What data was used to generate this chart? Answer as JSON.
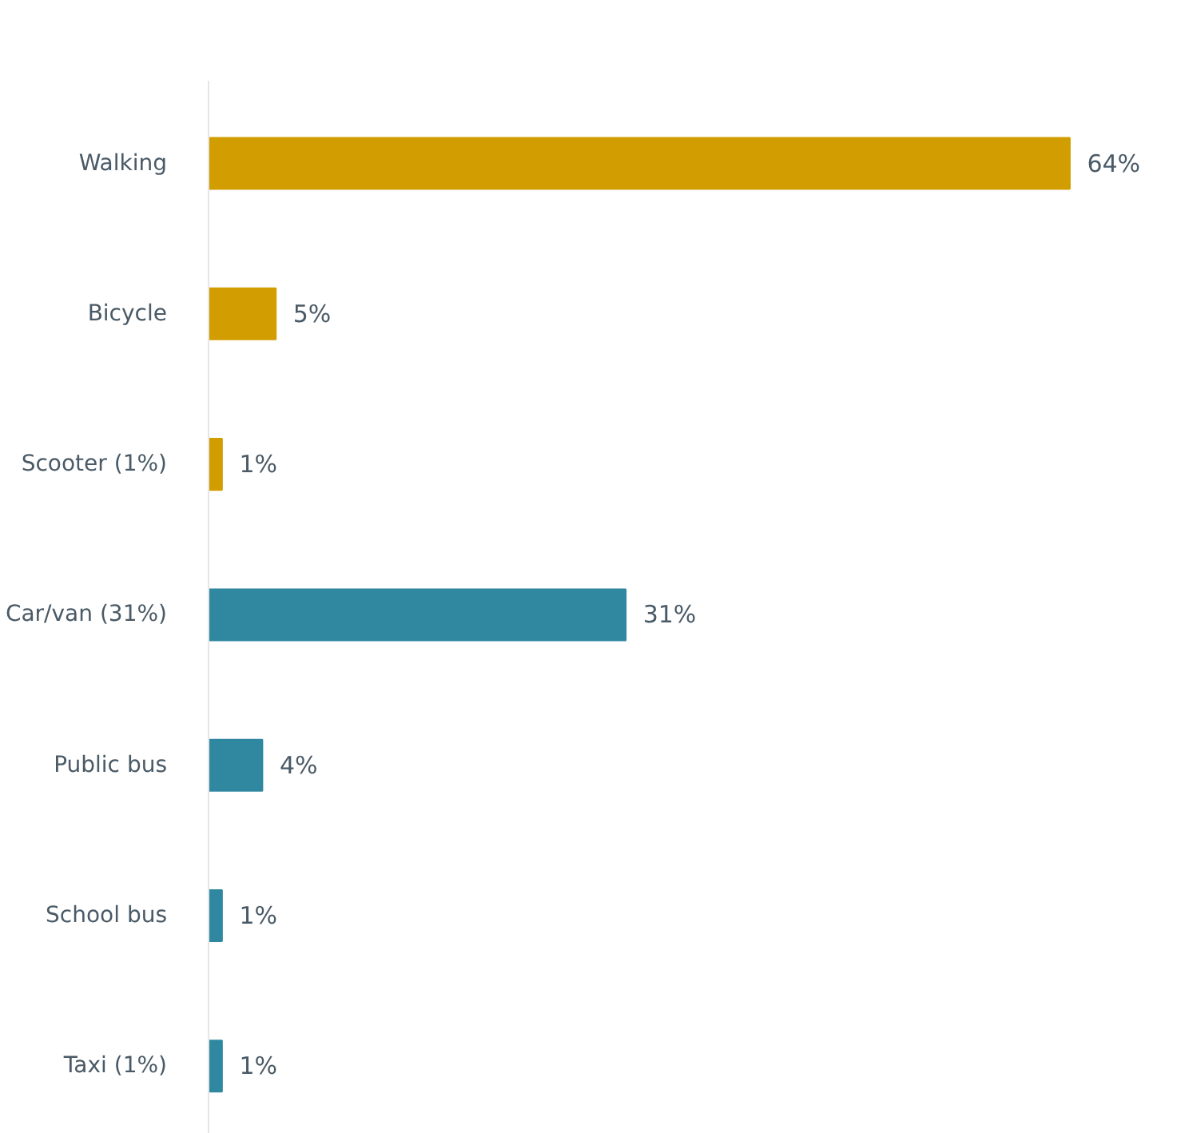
{
  "chart_data": {
    "type": "bar",
    "orientation": "horizontal",
    "categories": [
      "Walking",
      "Bicycle",
      "Scooter (1%)",
      "Car/van (31%)",
      "Public bus",
      "School bus",
      "Taxi (1%)"
    ],
    "values": [
      64,
      5,
      1,
      31,
      4,
      1,
      1
    ],
    "colors": [
      "#d19d00",
      "#d19d00",
      "#d19d00",
      "#2f87a0",
      "#2f87a0",
      "#2f87a0",
      "#2f87a0"
    ],
    "value_labels": [
      "64%",
      "5%",
      "1%",
      "31%",
      "4%",
      "1%",
      "1%"
    ],
    "grid": false
  }
}
